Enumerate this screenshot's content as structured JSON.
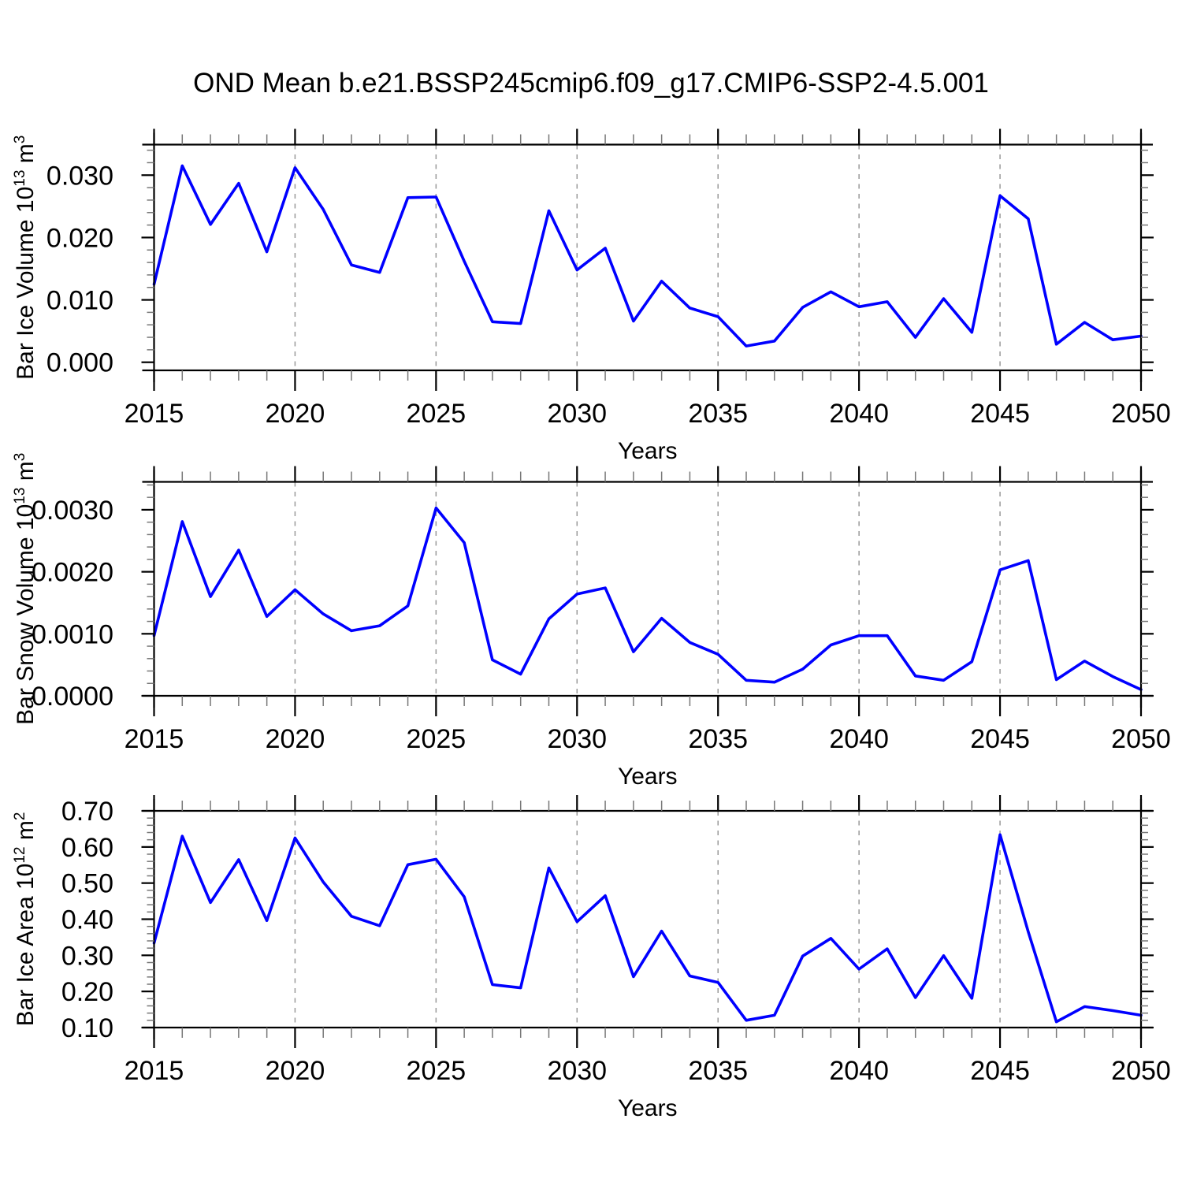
{
  "title": "OND Mean b.e21.BSSP245cmip6.f09_g17.CMIP6-SSP2-4.5.001",
  "colors": {
    "line": "#0000ff",
    "grid": "#999999",
    "frame": "#000000",
    "minor_tick": "#777777",
    "text": "#000000",
    "background": "#ffffff"
  },
  "chart_data": [
    {
      "id": "ice-volume",
      "type": "line",
      "ylabel": "Bar Ice Volume 10¹³ m³",
      "ylabel_parts": [
        {
          "text": "Bar Ice Volume 10"
        },
        {
          "text": "13",
          "sup": true
        },
        {
          "text": " m"
        },
        {
          "text": "3",
          "sup": true
        }
      ],
      "xlabel": "Years",
      "x": [
        2015,
        2016,
        2017,
        2018,
        2019,
        2020,
        2021,
        2022,
        2023,
        2024,
        2025,
        2026,
        2027,
        2028,
        2029,
        2030,
        2031,
        2032,
        2033,
        2034,
        2035,
        2036,
        2037,
        2038,
        2039,
        2040,
        2041,
        2042,
        2043,
        2044,
        2045,
        2046,
        2047,
        2048,
        2049,
        2050
      ],
      "values": [
        0.0125,
        0.0315,
        0.0221,
        0.0287,
        0.0177,
        0.0312,
        0.0245,
        0.0156,
        0.0144,
        0.0264,
        0.0265,
        0.0162,
        0.0065,
        0.0062,
        0.0243,
        0.0148,
        0.0183,
        0.0066,
        0.013,
        0.0087,
        0.0073,
        0.0026,
        0.0034,
        0.0088,
        0.0113,
        0.0089,
        0.0097,
        0.004,
        0.0102,
        0.0048,
        0.0267,
        0.023,
        0.0029,
        0.0064,
        0.0036,
        0.0042
      ],
      "xlim": [
        2015,
        2050
      ],
      "ylim": [
        -0.0013,
        0.0349
      ],
      "x_major_ticks": [
        2015,
        2020,
        2025,
        2030,
        2035,
        2040,
        2045,
        2050
      ],
      "x_tick_labels": [
        "2015",
        "2020",
        "2025",
        "2030",
        "2035",
        "2040",
        "2045",
        "2050"
      ],
      "x_minor_step": 1,
      "y_major_ticks": [
        0.0,
        0.01,
        0.02,
        0.03
      ],
      "y_tick_labels": [
        "0.000",
        "0.010",
        "0.020",
        "0.030"
      ],
      "y_minor_step": 0.002,
      "gridlines_x": [
        2020,
        2025,
        2030,
        2035,
        2040,
        2045
      ],
      "grid": true,
      "legend": "none"
    },
    {
      "id": "snow-volume",
      "type": "line",
      "ylabel": "Bar Snow Volume 10¹³ m³",
      "ylabel_parts": [
        {
          "text": "Bar Snow Volume 10"
        },
        {
          "text": "13",
          "sup": true
        },
        {
          "text": " m"
        },
        {
          "text": "3",
          "sup": true
        }
      ],
      "xlabel": "Years",
      "x": [
        2015,
        2016,
        2017,
        2018,
        2019,
        2020,
        2021,
        2022,
        2023,
        2024,
        2025,
        2026,
        2027,
        2028,
        2029,
        2030,
        2031,
        2032,
        2033,
        2034,
        2035,
        2036,
        2037,
        2038,
        2039,
        2040,
        2041,
        2042,
        2043,
        2044,
        2045,
        2046,
        2047,
        2048,
        2049,
        2050
      ],
      "values": [
        0.00097,
        0.00281,
        0.0016,
        0.00235,
        0.00128,
        0.00171,
        0.00132,
        0.00105,
        0.00113,
        0.00145,
        0.00303,
        0.00247,
        0.00058,
        0.00035,
        0.00124,
        0.00164,
        0.00174,
        0.00071,
        0.00125,
        0.00086,
        0.00067,
        0.00025,
        0.00022,
        0.00043,
        0.00082,
        0.00097,
        0.00097,
        0.00032,
        0.00025,
        0.00055,
        0.00203,
        0.00218,
        0.00026,
        0.00056,
        0.00031,
        0.0001
      ],
      "xlim": [
        2015,
        2050
      ],
      "ylim": [
        0.0,
        0.00345
      ],
      "x_major_ticks": [
        2015,
        2020,
        2025,
        2030,
        2035,
        2040,
        2045,
        2050
      ],
      "x_tick_labels": [
        "2015",
        "2020",
        "2025",
        "2030",
        "2035",
        "2040",
        "2045",
        "2050"
      ],
      "x_minor_step": 1,
      "y_major_ticks": [
        0.0,
        0.001,
        0.002,
        0.003
      ],
      "y_tick_labels": [
        "0.0000",
        "0.0010",
        "0.0020",
        "0.0030"
      ],
      "y_minor_step": 0.0002,
      "gridlines_x": [
        2020,
        2025,
        2030,
        2035,
        2040,
        2045
      ],
      "grid": true,
      "legend": "none"
    },
    {
      "id": "ice-area",
      "type": "line",
      "ylabel": "Bar Ice Area 10¹² m²",
      "ylabel_parts": [
        {
          "text": "Bar Ice Area 10"
        },
        {
          "text": "12",
          "sup": true
        },
        {
          "text": " m"
        },
        {
          "text": "2",
          "sup": true
        }
      ],
      "xlabel": "Years",
      "x": [
        2015,
        2016,
        2017,
        2018,
        2019,
        2020,
        2021,
        2022,
        2023,
        2024,
        2025,
        2026,
        2027,
        2028,
        2029,
        2030,
        2031,
        2032,
        2033,
        2034,
        2035,
        2036,
        2037,
        2038,
        2039,
        2040,
        2041,
        2042,
        2043,
        2044,
        2045,
        2046,
        2047,
        2048,
        2049,
        2050
      ],
      "values": [
        0.334,
        0.63,
        0.446,
        0.565,
        0.396,
        0.625,
        0.503,
        0.408,
        0.382,
        0.551,
        0.566,
        0.462,
        0.219,
        0.21,
        0.542,
        0.393,
        0.465,
        0.241,
        0.367,
        0.243,
        0.225,
        0.12,
        0.134,
        0.298,
        0.347,
        0.262,
        0.318,
        0.183,
        0.299,
        0.181,
        0.634,
        0.365,
        0.116,
        0.158,
        0.147,
        0.134
      ],
      "xlim": [
        2015,
        2050
      ],
      "ylim": [
        0.1,
        0.7
      ],
      "x_major_ticks": [
        2015,
        2020,
        2025,
        2030,
        2035,
        2040,
        2045,
        2050
      ],
      "x_tick_labels": [
        "2015",
        "2020",
        "2025",
        "2030",
        "2035",
        "2040",
        "2045",
        "2050"
      ],
      "x_minor_step": 1,
      "y_major_ticks": [
        0.1,
        0.2,
        0.3,
        0.4,
        0.5,
        0.6,
        0.7
      ],
      "y_tick_labels": [
        "0.10",
        "0.20",
        "0.30",
        "0.40",
        "0.50",
        "0.60",
        "0.70"
      ],
      "y_minor_step": 0.02,
      "gridlines_x": [
        2020,
        2025,
        2030,
        2035,
        2040,
        2045
      ],
      "grid": true,
      "legend": "none"
    }
  ]
}
